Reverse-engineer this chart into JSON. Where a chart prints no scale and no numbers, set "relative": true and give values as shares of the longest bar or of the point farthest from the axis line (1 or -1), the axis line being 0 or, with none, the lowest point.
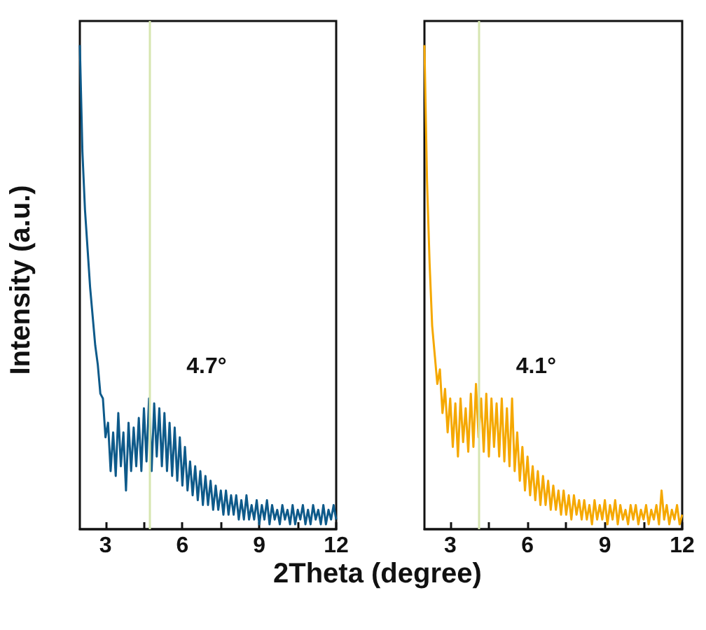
{
  "chart_data": [
    {
      "type": "line",
      "relative": true,
      "xlabel": "2Theta (degree)",
      "ylabel": "Intensity (a.u.)",
      "xlim": [
        2,
        12
      ],
      "xticks": [
        3,
        {
          "value": 4.5,
          "label": null
        },
        6,
        {
          "value": 7.5,
          "label": null
        },
        9,
        {
          "value": 10.5,
          "label": null
        },
        12
      ],
      "x": [
        2.0,
        2.1,
        2.2,
        2.3,
        2.4,
        2.5,
        2.6,
        2.7,
        2.8,
        2.9,
        3.0,
        3.1,
        3.2,
        3.3,
        3.4,
        3.5,
        3.6,
        3.7,
        3.8,
        3.9,
        4.0,
        4.1,
        4.2,
        4.3,
        4.4,
        4.5,
        4.6,
        4.7,
        4.8,
        4.9,
        5.0,
        5.1,
        5.2,
        5.3,
        5.4,
        5.5,
        5.6,
        5.7,
        5.8,
        5.9,
        6.0,
        6.1,
        6.2,
        6.3,
        6.4,
        6.5,
        6.6,
        6.7,
        6.8,
        6.9,
        7.0,
        7.1,
        7.2,
        7.3,
        7.4,
        7.5,
        7.6,
        7.7,
        7.8,
        7.9,
        8.0,
        8.1,
        8.2,
        8.3,
        8.4,
        8.5,
        8.6,
        8.7,
        8.8,
        8.9,
        9.0,
        9.1,
        9.2,
        9.3,
        9.4,
        9.5,
        9.6,
        9.7,
        9.8,
        9.9,
        10.0,
        10.1,
        10.2,
        10.3,
        10.4,
        10.5,
        10.6,
        10.7,
        10.8,
        10.9,
        11.0,
        11.1,
        11.2,
        11.3,
        11.4,
        11.5,
        11.6,
        11.7,
        11.8,
        11.9,
        12.0
      ],
      "series": [
        {
          "color": "#0e5a8a",
          "values": [
            1.0,
            0.78,
            0.66,
            0.58,
            0.5,
            0.44,
            0.38,
            0.34,
            0.28,
            0.27,
            0.19,
            0.22,
            0.12,
            0.2,
            0.11,
            0.24,
            0.13,
            0.2,
            0.08,
            0.22,
            0.12,
            0.21,
            0.13,
            0.23,
            0.12,
            0.25,
            0.14,
            0.27,
            0.12,
            0.26,
            0.15,
            0.25,
            0.13,
            0.24,
            0.12,
            0.22,
            0.11,
            0.21,
            0.1,
            0.19,
            0.09,
            0.17,
            0.08,
            0.14,
            0.07,
            0.13,
            0.06,
            0.12,
            0.05,
            0.11,
            0.05,
            0.1,
            0.04,
            0.09,
            0.04,
            0.08,
            0.03,
            0.08,
            0.03,
            0.07,
            0.03,
            0.07,
            0.02,
            0.06,
            0.02,
            0.07,
            0.02,
            0.05,
            0.02,
            0.06,
            0.01,
            0.05,
            0.02,
            0.06,
            0.01,
            0.05,
            0.02,
            0.04,
            0.01,
            0.05,
            0.02,
            0.04,
            0.01,
            0.05,
            0.01,
            0.04,
            0.02,
            0.05,
            0.01,
            0.04,
            0.01,
            0.05,
            0.02,
            0.04,
            0.01,
            0.05,
            0.01,
            0.04,
            0.02,
            0.05,
            0.02
          ]
        }
      ],
      "ref_lines": [
        {
          "axis": "x",
          "value": 4.7,
          "color": "#d6e6b0",
          "label": "4.7°"
        }
      ]
    },
    {
      "type": "line",
      "relative": true,
      "xlim": [
        2,
        12
      ],
      "xticks": [
        3,
        {
          "value": 4.5,
          "label": null
        },
        6,
        {
          "value": 7.5,
          "label": null
        },
        9,
        {
          "value": 10.5,
          "label": null
        },
        12
      ],
      "x": [
        2.0,
        2.1,
        2.2,
        2.3,
        2.4,
        2.5,
        2.6,
        2.7,
        2.8,
        2.9,
        3.0,
        3.1,
        3.2,
        3.3,
        3.4,
        3.5,
        3.6,
        3.7,
        3.8,
        3.9,
        4.0,
        4.1,
        4.2,
        4.3,
        4.4,
        4.5,
        4.6,
        4.7,
        4.8,
        4.9,
        5.0,
        5.1,
        5.2,
        5.3,
        5.4,
        5.5,
        5.6,
        5.7,
        5.8,
        5.9,
        6.0,
        6.1,
        6.2,
        6.3,
        6.4,
        6.5,
        6.6,
        6.7,
        6.8,
        6.9,
        7.0,
        7.1,
        7.2,
        7.3,
        7.4,
        7.5,
        7.6,
        7.7,
        7.8,
        7.9,
        8.0,
        8.1,
        8.2,
        8.3,
        8.4,
        8.5,
        8.6,
        8.7,
        8.8,
        8.9,
        9.0,
        9.1,
        9.2,
        9.3,
        9.4,
        9.5,
        9.6,
        9.7,
        9.8,
        9.9,
        10.0,
        10.1,
        10.2,
        10.3,
        10.4,
        10.5,
        10.6,
        10.7,
        10.8,
        10.9,
        11.0,
        11.1,
        11.2,
        11.3,
        11.4,
        11.5,
        11.6,
        11.7,
        11.8,
        11.9,
        12.0
      ],
      "series": [
        {
          "color": "#f5a800",
          "values": [
            1.0,
            0.72,
            0.55,
            0.42,
            0.36,
            0.3,
            0.33,
            0.24,
            0.29,
            0.2,
            0.27,
            0.17,
            0.26,
            0.15,
            0.27,
            0.18,
            0.25,
            0.16,
            0.28,
            0.17,
            0.3,
            0.19,
            0.27,
            0.16,
            0.28,
            0.15,
            0.27,
            0.17,
            0.26,
            0.15,
            0.27,
            0.14,
            0.25,
            0.13,
            0.27,
            0.12,
            0.2,
            0.1,
            0.17,
            0.08,
            0.15,
            0.07,
            0.13,
            0.06,
            0.12,
            0.05,
            0.11,
            0.05,
            0.1,
            0.04,
            0.09,
            0.04,
            0.08,
            0.03,
            0.08,
            0.03,
            0.07,
            0.02,
            0.07,
            0.03,
            0.06,
            0.02,
            0.06,
            0.02,
            0.05,
            0.01,
            0.06,
            0.02,
            0.05,
            0.02,
            0.06,
            0.01,
            0.05,
            0.02,
            0.06,
            0.01,
            0.05,
            0.02,
            0.04,
            0.01,
            0.05,
            0.02,
            0.05,
            0.01,
            0.04,
            0.02,
            0.05,
            0.01,
            0.04,
            0.02,
            0.05,
            0.01,
            0.08,
            0.02,
            0.05,
            0.01,
            0.04,
            0.02,
            0.05,
            0.01,
            0.03
          ]
        }
      ],
      "ref_lines": [
        {
          "axis": "x",
          "value": 4.1,
          "color": "#d6e6b0",
          "label": "4.1°"
        }
      ]
    }
  ]
}
